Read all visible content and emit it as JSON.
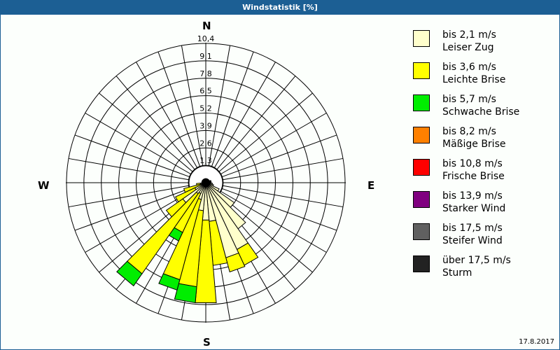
{
  "window": {
    "title": "Windstatistik [%]",
    "date": "17.8.2017"
  },
  "compass": {
    "n": "N",
    "e": "E",
    "s": "S",
    "w": "W"
  },
  "legend": [
    {
      "range": "bis 2,1 m/s",
      "name": "Leiser Zug",
      "color": "#ffffcc"
    },
    {
      "range": "bis 3,6 m/s",
      "name": "Leichte Brise",
      "color": "#ffff00"
    },
    {
      "range": "bis 5,7 m/s",
      "name": "Schwache Brise",
      "color": "#00ee00"
    },
    {
      "range": "bis 8,2 m/s",
      "name": "Mäßige Brise",
      "color": "#ff8000"
    },
    {
      "range": "bis 10,8 m/s",
      "name": "Frische Brise",
      "color": "#ff0000"
    },
    {
      "range": "bis 13,9 m/s",
      "name": "Starker Wind",
      "color": "#800080"
    },
    {
      "range": "bis 17,5 m/s",
      "name": "Steifer Wind",
      "color": "#606060"
    },
    {
      "range": "über 17,5 m/s",
      "name": "Sturm",
      "color": "#222222"
    }
  ],
  "chart_data": {
    "type": "polar-stacked-bar (wind rose)",
    "title": "Windstatistik [%]",
    "radial_ticks": [
      "1,3",
      "2,6",
      "3,9",
      "5,2",
      "6,5",
      "7,8",
      "9,1",
      "10,4"
    ],
    "radial_max": 10.4,
    "sector_width_deg": 10,
    "series_names": [
      "Leiser Zug",
      "Leichte Brise",
      "Schwache Brise",
      "Mäßige Brise",
      "Frische Brise",
      "Starker Wind",
      "Steifer Wind",
      "Sturm"
    ],
    "sectors": [
      {
        "dir": 0,
        "values": [
          0.3,
          0.0,
          0,
          0,
          0,
          0,
          0,
          0
        ]
      },
      {
        "dir": 10,
        "values": [
          0.3,
          0.0,
          0,
          0,
          0,
          0,
          0,
          0
        ]
      },
      {
        "dir": 20,
        "values": [
          0.3,
          0.0,
          0,
          0,
          0,
          0,
          0,
          0
        ]
      },
      {
        "dir": 30,
        "values": [
          0.3,
          0.0,
          0,
          0,
          0,
          0,
          0,
          0
        ]
      },
      {
        "dir": 40,
        "values": [
          0.3,
          0.0,
          0,
          0,
          0,
          0,
          0,
          0
        ]
      },
      {
        "dir": 50,
        "values": [
          0.3,
          0.0,
          0,
          0,
          0,
          0,
          0,
          0
        ]
      },
      {
        "dir": 60,
        "values": [
          0.3,
          0.0,
          0,
          0,
          0,
          0,
          0,
          0
        ]
      },
      {
        "dir": 70,
        "values": [
          0.4,
          0.0,
          0,
          0,
          0,
          0,
          0,
          0
        ]
      },
      {
        "dir": 80,
        "values": [
          0.4,
          0.0,
          0,
          0,
          0,
          0,
          0,
          0
        ]
      },
      {
        "dir": 90,
        "values": [
          0.4,
          0.0,
          0,
          0,
          0,
          0,
          0,
          0
        ]
      },
      {
        "dir": 100,
        "values": [
          0.5,
          0.0,
          0,
          0,
          0,
          0,
          0,
          0
        ]
      },
      {
        "dir": 110,
        "values": [
          0.6,
          0.0,
          0,
          0,
          0,
          0,
          0,
          0
        ]
      },
      {
        "dir": 120,
        "values": [
          1.1,
          0.0,
          0,
          0,
          0,
          0,
          0,
          0
        ]
      },
      {
        "dir": 130,
        "values": [
          2.6,
          0.0,
          0,
          0,
          0,
          0,
          0,
          0
        ]
      },
      {
        "dir": 140,
        "values": [
          4.2,
          0.0,
          0,
          0,
          0,
          0,
          0,
          0
        ]
      },
      {
        "dir": 150,
        "values": [
          5.5,
          1.3,
          0,
          0,
          0,
          0,
          0,
          0
        ]
      },
      {
        "dir": 160,
        "values": [
          5.8,
          1.1,
          0,
          0,
          0,
          0,
          0,
          0
        ]
      },
      {
        "dir": 170,
        "values": [
          2.9,
          3.3,
          0,
          0,
          0,
          0,
          0,
          0
        ]
      },
      {
        "dir": 180,
        "values": [
          2.8,
          6.2,
          0,
          0,
          0,
          0,
          0,
          0
        ]
      },
      {
        "dir": 190,
        "values": [
          2.1,
          5.7,
          1.2,
          0,
          0,
          0,
          0,
          0
        ]
      },
      {
        "dir": 200,
        "values": [
          1.3,
          6.2,
          0.8,
          0,
          0,
          0,
          0,
          0
        ]
      },
      {
        "dir": 210,
        "values": [
          0.9,
          3.2,
          0.7,
          0,
          0,
          0,
          0,
          0
        ]
      },
      {
        "dir": 220,
        "values": [
          1.0,
          7.3,
          1.1,
          0,
          0,
          0,
          0,
          0
        ]
      },
      {
        "dir": 230,
        "values": [
          2.1,
          1.5,
          0,
          0,
          0,
          0,
          0,
          0
        ]
      },
      {
        "dir": 240,
        "values": [
          0.9,
          1.6,
          0,
          0,
          0,
          0,
          0,
          0
        ]
      },
      {
        "dir": 250,
        "values": [
          0.4,
          1.3,
          0,
          0,
          0,
          0,
          0,
          0
        ]
      },
      {
        "dir": 260,
        "values": [
          0.4,
          0.3,
          0,
          0,
          0,
          0,
          0,
          0
        ]
      },
      {
        "dir": 270,
        "values": [
          0.3,
          0.0,
          0,
          0,
          0,
          0,
          0,
          0
        ]
      },
      {
        "dir": 280,
        "values": [
          0.3,
          0.0,
          0,
          0,
          0,
          0,
          0,
          0
        ]
      },
      {
        "dir": 290,
        "values": [
          0.3,
          0.0,
          0,
          0,
          0,
          0,
          0,
          0
        ]
      },
      {
        "dir": 300,
        "values": [
          0.3,
          0.0,
          0,
          0,
          0,
          0,
          0,
          0
        ]
      },
      {
        "dir": 310,
        "values": [
          0.3,
          0.0,
          0,
          0,
          0,
          0,
          0,
          0
        ]
      },
      {
        "dir": 320,
        "values": [
          0.3,
          0.0,
          0,
          0,
          0,
          0,
          0,
          0
        ]
      },
      {
        "dir": 330,
        "values": [
          0.3,
          0.0,
          0,
          0,
          0,
          0,
          0,
          0
        ]
      },
      {
        "dir": 340,
        "values": [
          0.3,
          0.0,
          0,
          0,
          0,
          0,
          0,
          0
        ]
      },
      {
        "dir": 350,
        "values": [
          0.3,
          0.0,
          0,
          0,
          0,
          0,
          0,
          0
        ]
      }
    ],
    "legend_position": "right",
    "grid": true
  }
}
